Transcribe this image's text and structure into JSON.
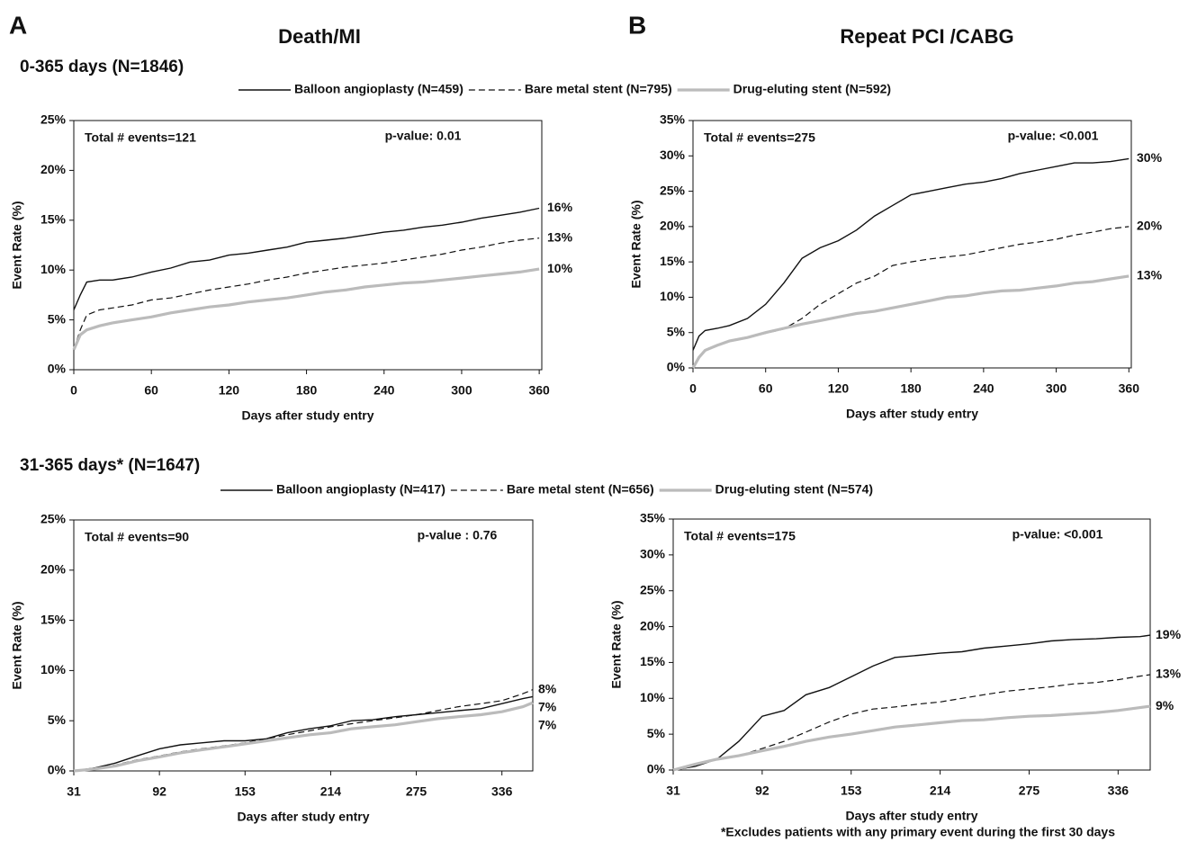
{
  "panels": [
    {
      "label": "A",
      "title": "Death/MI"
    },
    {
      "label": "B",
      "title": "Repeat PCI /CABG"
    }
  ],
  "sections": [
    {
      "title": "0-365 days (N=1846)"
    },
    {
      "title": "31-365 days* (N=1647)"
    }
  ],
  "footnote": "*Excludes patients with any primary event during the first 30 days",
  "chart_data": [
    {
      "type": "line",
      "xlabel": "Days after study entry",
      "ylabel": "Event Rate (%)",
      "annotations": [
        "Total # events=121",
        "p-value: 0.01"
      ],
      "xlim": [
        0,
        362
      ],
      "xticks": [
        0,
        60,
        120,
        180,
        240,
        300,
        360
      ],
      "ylim": [
        0,
        25
      ],
      "yticks": [
        {
          "value": 0,
          "label": "0%"
        },
        {
          "value": 5,
          "label": "5%"
        },
        {
          "value": 10,
          "label": "10%"
        },
        {
          "value": 15,
          "label": "15%"
        },
        {
          "value": 20,
          "label": "20%"
        },
        {
          "value": 25,
          "label": "25%"
        }
      ],
      "x": [
        0,
        5,
        10,
        20,
        30,
        45,
        60,
        75,
        90,
        105,
        120,
        135,
        150,
        165,
        180,
        195,
        210,
        225,
        240,
        255,
        270,
        285,
        300,
        315,
        330,
        345,
        360
      ],
      "series": [
        {
          "name": "Balloon angioplasty (N=459)",
          "color": "#111111",
          "line_style": "solid",
          "end_label": "16%",
          "values": [
            6,
            7.5,
            8.8,
            9,
            9,
            9.3,
            9.8,
            10.2,
            10.8,
            11,
            11.5,
            11.7,
            12,
            12.3,
            12.8,
            13,
            13.2,
            13.5,
            13.8,
            14,
            14.3,
            14.5,
            14.8,
            15.2,
            15.5,
            15.8,
            16.2
          ]
        },
        {
          "name": "Bare metal stent (N=795)",
          "color": "#111111",
          "line_style": "dashed",
          "end_label": "13%",
          "values": [
            2,
            4,
            5.5,
            6,
            6.2,
            6.5,
            7,
            7.2,
            7.6,
            8,
            8.3,
            8.6,
            9,
            9.3,
            9.7,
            10,
            10.3,
            10.5,
            10.7,
            11,
            11.3,
            11.6,
            12,
            12.3,
            12.7,
            13,
            13.2
          ]
        },
        {
          "name": "Drug-eluting stent (N=592)",
          "color": "#bbbbbb",
          "line_style": "thick",
          "end_label": "10%",
          "values": [
            2,
            3.5,
            4,
            4.4,
            4.7,
            5,
            5.3,
            5.7,
            6,
            6.3,
            6.5,
            6.8,
            7,
            7.2,
            7.5,
            7.8,
            8,
            8.3,
            8.5,
            8.7,
            8.8,
            9,
            9.2,
            9.4,
            9.6,
            9.8,
            10.1
          ]
        }
      ]
    },
    {
      "type": "line",
      "xlabel": "Days after study entry",
      "ylabel": "Event Rate (%)",
      "annotations": [
        "Total # events=275",
        "p-value: <0.001"
      ],
      "xlim": [
        0,
        362
      ],
      "xticks": [
        0,
        60,
        120,
        180,
        240,
        300,
        360
      ],
      "ylim": [
        0,
        35
      ],
      "yticks": [
        {
          "value": 0,
          "label": "0%"
        },
        {
          "value": 5,
          "label": "5%"
        },
        {
          "value": 10,
          "label": "10%"
        },
        {
          "value": 15,
          "label": "15%"
        },
        {
          "value": 20,
          "label": "20%"
        },
        {
          "value": 25,
          "label": "25%"
        },
        {
          "value": 30,
          "label": "30%"
        },
        {
          "value": 35,
          "label": "35%"
        }
      ],
      "x": [
        0,
        5,
        10,
        20,
        30,
        45,
        60,
        75,
        90,
        105,
        120,
        135,
        150,
        165,
        180,
        195,
        210,
        225,
        240,
        255,
        270,
        285,
        300,
        315,
        330,
        345,
        360
      ],
      "series": [
        {
          "color": "#111111",
          "line_style": "solid",
          "end_label": "30%",
          "values": [
            2.5,
            4.5,
            5.3,
            5.6,
            6,
            7,
            9,
            12,
            15.5,
            17,
            18,
            19.5,
            21.5,
            23,
            24.5,
            25,
            25.5,
            26,
            26.3,
            26.8,
            27.5,
            28,
            28.5,
            29,
            29,
            29.2,
            29.6
          ]
        },
        {
          "color": "#111111",
          "line_style": "dashed",
          "end_label": "20%",
          "values": [
            0,
            1.5,
            2.5,
            3.2,
            3.7,
            4.3,
            4.9,
            5.5,
            7,
            9,
            10.5,
            12,
            13,
            14.5,
            15,
            15.4,
            15.7,
            16,
            16.5,
            17,
            17.5,
            17.8,
            18.2,
            18.8,
            19.2,
            19.7,
            20
          ]
        },
        {
          "color": "#bbbbbb",
          "line_style": "thick",
          "end_label": "13%",
          "values": [
            0,
            1.5,
            2.5,
            3.2,
            3.8,
            4.3,
            5,
            5.6,
            6.2,
            6.7,
            7.2,
            7.7,
            8,
            8.5,
            9,
            9.5,
            10,
            10.2,
            10.6,
            10.9,
            11,
            11.3,
            11.6,
            12,
            12.2,
            12.6,
            13
          ]
        }
      ]
    },
    {
      "type": "line",
      "xlabel": "Days after study entry",
      "ylabel": "Event Rate (%)",
      "annotations": [
        "Total # events=90",
        "p-value : 0.76"
      ],
      "xlim": [
        31,
        358
      ],
      "xticks": [
        31,
        92,
        153,
        214,
        275,
        336
      ],
      "ylim": [
        0,
        25
      ],
      "yticks": [
        {
          "value": 0,
          "label": "0%"
        },
        {
          "value": 5,
          "label": "5%"
        },
        {
          "value": 10,
          "label": "10%"
        },
        {
          "value": 15,
          "label": "15%"
        },
        {
          "value": 20,
          "label": "20%"
        },
        {
          "value": 25,
          "label": "25%"
        }
      ],
      "x": [
        31,
        46,
        61,
        76,
        92,
        107,
        122,
        138,
        153,
        168,
        183,
        199,
        214,
        229,
        244,
        260,
        275,
        290,
        305,
        321,
        336,
        351,
        358
      ],
      "series": [
        {
          "name": "Balloon angioplasty (N=417)",
          "color": "#111111",
          "line_style": "solid",
          "end_label": "7%",
          "values": [
            0,
            0.3,
            0.8,
            1.5,
            2.2,
            2.6,
            2.8,
            3,
            3,
            3.2,
            3.8,
            4.2,
            4.5,
            5,
            5.1,
            5.4,
            5.6,
            5.8,
            6,
            6.2,
            6.7,
            7.2,
            7.4
          ]
        },
        {
          "name": "Bare metal stent (N=656)",
          "color": "#111111",
          "line_style": "dashed",
          "end_label": "8%",
          "values": [
            0,
            0.3,
            0.6,
            1.1,
            1.5,
            1.9,
            2.2,
            2.5,
            2.8,
            3.2,
            3.6,
            4,
            4.4,
            4.7,
            5,
            5.3,
            5.6,
            6,
            6.4,
            6.7,
            7,
            7.7,
            8.1
          ]
        },
        {
          "name": "Drug-eluting stent (N=574)",
          "color": "#bbbbbb",
          "line_style": "thick",
          "end_label": "7%",
          "values": [
            0,
            0.2,
            0.5,
            1,
            1.4,
            1.8,
            2.1,
            2.4,
            2.7,
            3,
            3.3,
            3.6,
            3.8,
            4.2,
            4.4,
            4.6,
            4.9,
            5.2,
            5.4,
            5.6,
            5.9,
            6.4,
            6.8
          ]
        }
      ]
    },
    {
      "type": "line",
      "xlabel": "Days after study entry",
      "ylabel": "Event Rate (%)",
      "annotations": [
        "Total # events=175",
        "p-value: <0.001"
      ],
      "xlim": [
        31,
        358
      ],
      "xticks": [
        31,
        92,
        153,
        214,
        275,
        336
      ],
      "ylim": [
        0,
        35
      ],
      "yticks": [
        {
          "value": 0,
          "label": "0%"
        },
        {
          "value": 5,
          "label": "5%"
        },
        {
          "value": 10,
          "label": "10%"
        },
        {
          "value": 15,
          "label": "15%"
        },
        {
          "value": 20,
          "label": "20%"
        },
        {
          "value": 25,
          "label": "25%"
        },
        {
          "value": 30,
          "label": "30%"
        },
        {
          "value": 35,
          "label": "35%"
        }
      ],
      "x": [
        31,
        46,
        61,
        76,
        92,
        107,
        122,
        138,
        153,
        168,
        183,
        199,
        214,
        229,
        244,
        260,
        275,
        290,
        305,
        321,
        336,
        351,
        358
      ],
      "series": [
        {
          "color": "#111111",
          "line_style": "solid",
          "end_label": "19%",
          "values": [
            0,
            0.5,
            1.5,
            4,
            7.5,
            8.3,
            10.5,
            11.5,
            13,
            14.5,
            15.7,
            16,
            16.3,
            16.5,
            17,
            17.3,
            17.6,
            18,
            18.2,
            18.3,
            18.5,
            18.6,
            18.8
          ]
        },
        {
          "color": "#111111",
          "line_style": "dashed",
          "end_label": "13%",
          "values": [
            0,
            0.7,
            1.5,
            2,
            3,
            4,
            5.3,
            6.7,
            7.8,
            8.5,
            8.8,
            9.2,
            9.5,
            10,
            10.5,
            11,
            11.3,
            11.6,
            12,
            12.2,
            12.6,
            13.1,
            13.3
          ]
        },
        {
          "color": "#bbbbbb",
          "line_style": "thick",
          "end_label": "9%",
          "values": [
            0,
            0.8,
            1.5,
            2,
            2.7,
            3.3,
            4,
            4.6,
            5,
            5.5,
            6,
            6.3,
            6.6,
            6.9,
            7,
            7.3,
            7.5,
            7.6,
            7.8,
            8,
            8.3,
            8.7,
            8.9
          ]
        }
      ]
    }
  ]
}
